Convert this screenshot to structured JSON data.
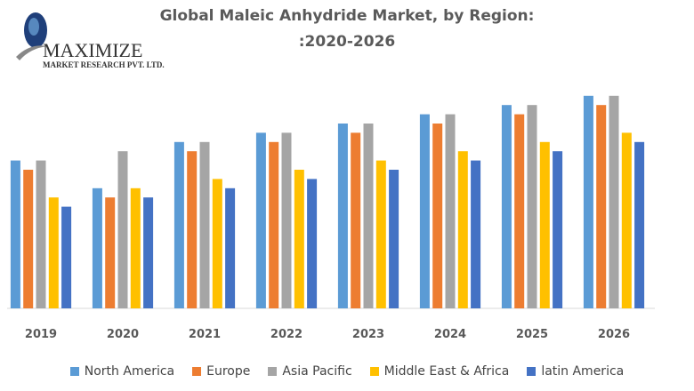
{
  "chart_data": {
    "type": "bar",
    "title": "Global Maleic Anhydride Market, by Region:",
    "subtitle": ":2020-2026",
    "categories": [
      "2019",
      "2020",
      "2021",
      "2022",
      "2023",
      "2024",
      "2025",
      "2026"
    ],
    "series": [
      {
        "name": "North America",
        "color": "#5B9BD5",
        "values": [
          16,
          13,
          18,
          19,
          20,
          21,
          22,
          23
        ]
      },
      {
        "name": "Europe",
        "color": "#ED7D31",
        "values": [
          15,
          12,
          17,
          18,
          19,
          20,
          21,
          22
        ]
      },
      {
        "name": "Asia Pacific",
        "color": "#A5A5A5",
        "values": [
          16,
          17,
          18,
          19,
          20,
          21,
          22,
          23
        ]
      },
      {
        "name": "Middle East & Africa",
        "color": "#FFC000",
        "values": [
          12,
          13,
          14,
          15,
          16,
          17,
          18,
          19
        ]
      },
      {
        "name": "latin America",
        "color": "#4472C4",
        "values": [
          11,
          12,
          13,
          14,
          15,
          16,
          17,
          18
        ]
      }
    ],
    "ylim": [
      0,
      25
    ],
    "grid": false,
    "legend": "bottom"
  },
  "logo": {
    "name": "MAXIMIZE",
    "tagline": "MARKET RESEARCH PVT. LTD."
  }
}
